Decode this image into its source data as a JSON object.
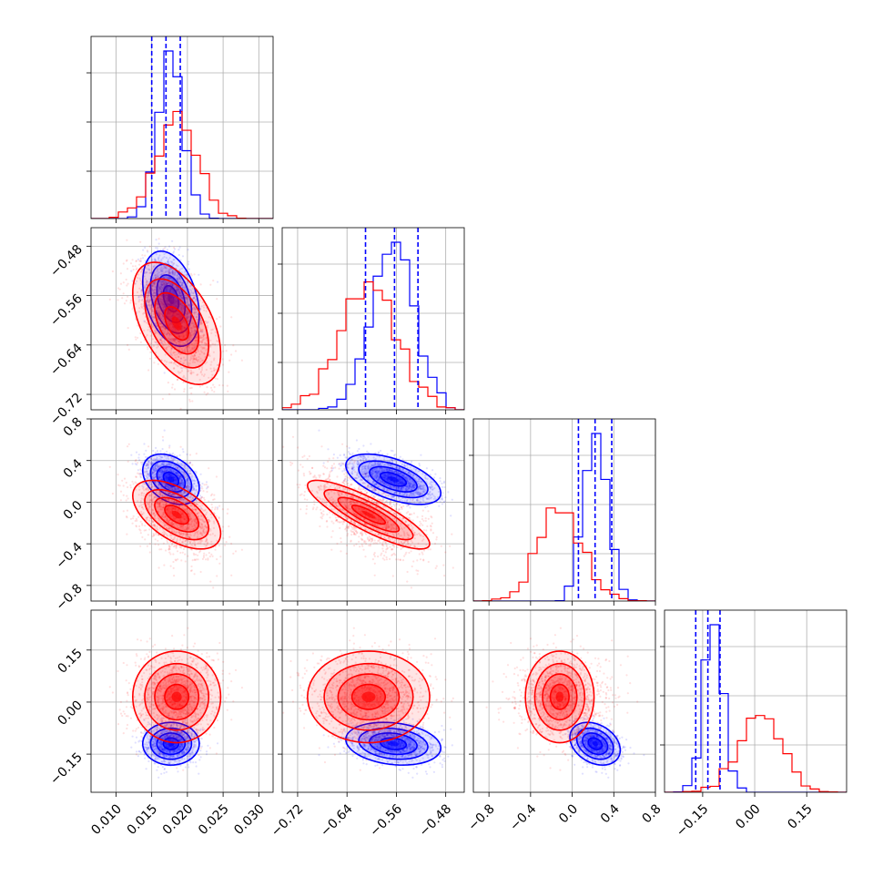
{
  "colors": {
    "series_a": "#0000ff",
    "series_b": "#ff0000",
    "grid": "#b0b0b0"
  },
  "chart_data": {
    "type": "corner-plot",
    "grid": true,
    "series": [
      {
        "color": "#0000ff",
        "means": [
          0.0177,
          -0.565,
          0.22,
          -0.12
        ],
        "sds": [
          0.0018,
          0.035,
          0.11,
          0.028
        ],
        "corr": [
          [
            1,
            -0.35,
            -0.35,
            0.0
          ],
          [
            -0.35,
            1,
            -0.55,
            -0.2
          ],
          [
            -0.35,
            -0.55,
            1,
            -0.3
          ],
          [
            0.0,
            -0.2,
            -0.3,
            1
          ]
        ],
        "quantiles": [
          [
            0.015,
            0.017,
            0.019
          ],
          [
            -0.61,
            -0.563,
            -0.525
          ],
          [
            0.06,
            0.22,
            0.38
          ],
          [
            -0.17,
            -0.135,
            -0.1
          ]
        ]
      },
      {
        "color": "#ff0000",
        "means": [
          0.0185,
          -0.605,
          -0.12,
          0.015
        ],
        "sds": [
          0.0028,
          0.045,
          0.15,
          0.06
        ],
        "corr": [
          [
            1,
            -0.5,
            -0.55,
            0.0
          ],
          [
            -0.5,
            1,
            -0.85,
            0.0
          ],
          [
            -0.55,
            -0.85,
            1,
            0.0
          ],
          [
            0.0,
            0.0,
            0.0,
            1
          ]
        ]
      }
    ],
    "params": [
      {
        "range": [
          0.0065,
          0.032
        ],
        "ticks": [
          0.01,
          0.015,
          0.02,
          0.025,
          0.03
        ],
        "tick_labels": [
          "0.010",
          "0.015",
          "0.020",
          "0.025",
          "0.030"
        ]
      },
      {
        "range": [
          -0.745,
          -0.45
        ],
        "ticks": [
          -0.72,
          -0.64,
          -0.56,
          -0.48
        ],
        "tick_labels": [
          "−0.72",
          "−0.64",
          "−0.56",
          "−0.48"
        ]
      },
      {
        "range": [
          -0.95,
          0.8
        ],
        "ticks": [
          -0.8,
          -0.4,
          0.0,
          0.4,
          0.8
        ],
        "tick_labels": [
          "−0.8",
          "−0.4",
          "0.0",
          "0.4",
          "0.8"
        ]
      },
      {
        "range": [
          -0.26,
          0.265
        ],
        "ticks": [
          -0.15,
          0.0,
          0.15
        ],
        "tick_labels": [
          "−0.15",
          "0.00",
          "0.15"
        ]
      }
    ]
  }
}
